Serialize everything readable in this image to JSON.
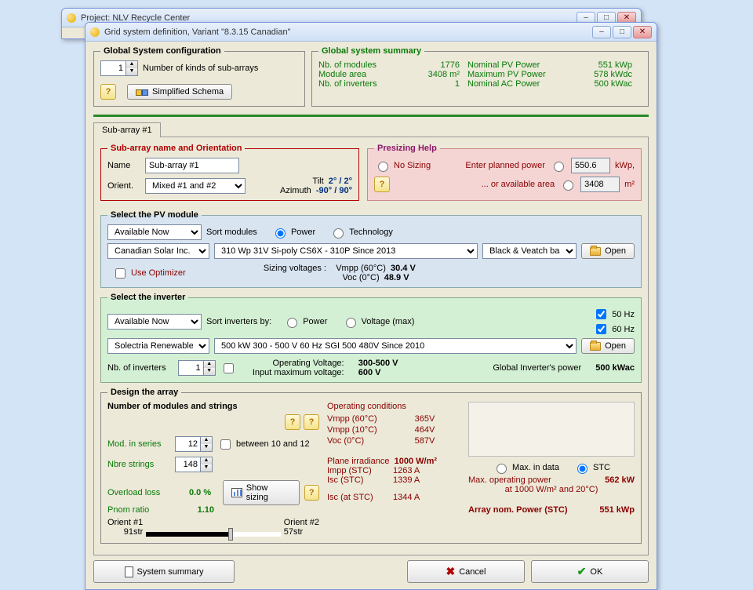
{
  "background_window": {
    "title": "Project: NLV Recycle Center"
  },
  "window": {
    "title": "Grid system definition, Variant   \"8.3.15 Canadian\"",
    "buttons": {
      "min": "–",
      "max": "□",
      "close": "✕"
    }
  },
  "global_config": {
    "legend": "Global System configuration",
    "kinds_value": "1",
    "kinds_label": "Number of kinds of sub-arrays",
    "schema_btn": "Simplified Schema"
  },
  "global_summary": {
    "legend": "Global system summary",
    "rows": [
      {
        "l": "Nb. of modules",
        "v": "1776",
        "l2": "Nominal PV Power",
        "v2": "551  kWp"
      },
      {
        "l": "Module area",
        "v": "3408 m²",
        "l2": "Maximum PV Power",
        "v2": "578  kWdc"
      },
      {
        "l": "Nb. of inverters",
        "v": "1",
        "l2": "Nominal AC Power",
        "v2": "500  kWac"
      }
    ]
  },
  "subarray_tab": "Sub-array #1",
  "orientation": {
    "legend": "Sub-array name and Orientation",
    "name_label": "Name",
    "name_value": "Sub-array #1",
    "orient_label": "Orient.",
    "orient_value": "Mixed #1 and #2",
    "tilt_label": "Tilt",
    "tilt_value": "2° / 2°",
    "azimuth_label": "Azimuth",
    "azimuth_value": "-90° / 90°"
  },
  "presizing": {
    "legend": "Presizing Help",
    "no_sizing": "No Sizing",
    "planned_label": "Enter planned power",
    "planned_value": "550.6",
    "planned_unit": "kWp,",
    "area_label": "... or available area",
    "area_value": "3408",
    "area_unit": "m²"
  },
  "pv_module": {
    "legend": "Select the PV module",
    "availability": "Available Now",
    "sort_label": "Sort modules",
    "sort_power": "Power",
    "sort_tech": "Technology",
    "manufacturer": "Canadian Solar Inc.",
    "spec": "310 Wp 31V        Si-poly           CS6X - 310P                          Since 2013",
    "db": "Black & Veatch base",
    "open": "Open",
    "sizing_voltages": "Sizing voltages :",
    "vmpp_label": "Vmpp (60°C)",
    "vmpp_value": "30.4 V",
    "voc_label": "Voc  (0°C)",
    "voc_value": "48.9 V",
    "use_optimizer": "Use Optimizer"
  },
  "inverter": {
    "legend": "Select the inverter",
    "availability": "Available Now",
    "sort_label": "Sort inverters by:",
    "sort_power": "Power",
    "sort_voltage": "Voltage (max)",
    "hz50": "50 Hz",
    "hz60": "60 Hz",
    "manufacturer": "Solectria Renewables",
    "spec": "500 kW    300 - 500 V         60 Hz        SGI 500 480V                                Since 2010",
    "open": "Open",
    "nb_label": "Nb. of inverters",
    "nb_value": "1",
    "op_voltage_label": "Operating Voltage:",
    "op_voltage_value": "300-500 V",
    "max_voltage_label": "Input maximum voltage:",
    "max_voltage_value": "600 V",
    "global_power_label": "Global Inverter's power",
    "global_power_value": "500  kWac"
  },
  "design": {
    "legend": "Design the array",
    "num_mod_legend": "Number of modules and strings",
    "mod_series_label": "Mod. in series",
    "mod_series_value": "12",
    "between_label": "between 10 and 12",
    "nbre_label": "Nbre strings",
    "nbre_value": "148",
    "overload_label": "Overload loss",
    "overload_value": "0.0 %",
    "pnom_label": "Pnom ratio",
    "pnom_value": "1.10",
    "show_sizing": "Show sizing",
    "orient1_label": "Orient #1",
    "orient1_value": "91str",
    "orient2_label": "Orient #2",
    "orient2_value": "57str",
    "op_cond_legend": "Operating conditions",
    "op_rows": [
      {
        "l": "Vmpp (60°C)",
        "v": "365",
        "u": "V"
      },
      {
        "l": "Vmpp (10°C)",
        "v": "464",
        "u": "V"
      },
      {
        "l": "Voc   (0°C)",
        "v": "587",
        "u": "V"
      }
    ],
    "irradiance_label": "Plane irradiance",
    "irradiance_value": "1000 W/m²",
    "impp_label": "Impp (STC)",
    "impp_value": "1263 A",
    "isc_label": "Isc (STC)",
    "isc_value": "1339 A",
    "isc_at_label": "Isc (at STC)",
    "isc_at_value": "1344 A",
    "max_in_data": "Max. in data",
    "stc": "STC",
    "max_op_power_label": "Max. operating power",
    "max_op_power_value": "562 kW",
    "max_op_power_cond": "at 1000 W/m² and 20°C)",
    "array_nom_label": "Array nom. Power (STC)",
    "array_nom_value": "551 kWp"
  },
  "footer": {
    "summary": "System summary",
    "cancel": "Cancel",
    "ok": "OK"
  }
}
